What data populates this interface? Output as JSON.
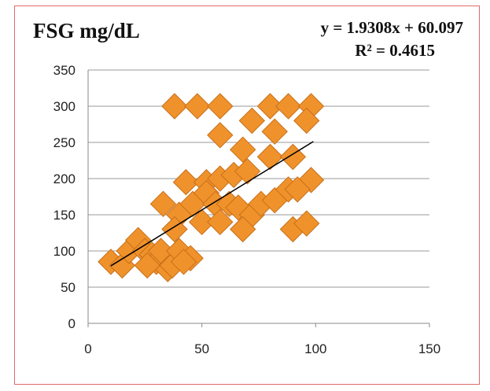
{
  "chart_data": {
    "type": "scatter",
    "title": "FSG mg/dL",
    "xlabel": "",
    "ylabel": "",
    "xlim": [
      0,
      150
    ],
    "ylim": [
      0,
      350
    ],
    "xticks": [
      "0",
      "50",
      "100",
      "150"
    ],
    "yticks": [
      "0",
      "50",
      "100",
      "150",
      "200",
      "250",
      "300",
      "350"
    ],
    "grid": "horizontal",
    "legend": "none",
    "marker_color": "#f0922b",
    "trendline": {
      "slope": 1.9308,
      "intercept": 60.097,
      "x_range": [
        10,
        99
      ],
      "equation_label": "y = 1.9308x + 60.097",
      "r2_label": "R² = 0.4615",
      "color": "#000000"
    },
    "points": [
      [
        38,
        300
      ],
      [
        48,
        300
      ],
      [
        58,
        300
      ],
      [
        80,
        300
      ],
      [
        88,
        300
      ],
      [
        98,
        300
      ],
      [
        58,
        260
      ],
      [
        72,
        280
      ],
      [
        96,
        280
      ],
      [
        82,
        265
      ],
      [
        68,
        240
      ],
      [
        80,
        230
      ],
      [
        90,
        230
      ],
      [
        43,
        195
      ],
      [
        52,
        195
      ],
      [
        58,
        200
      ],
      [
        64,
        205
      ],
      [
        70,
        210
      ],
      [
        98,
        198
      ],
      [
        33,
        165
      ],
      [
        40,
        150
      ],
      [
        46,
        165
      ],
      [
        52,
        180
      ],
      [
        56,
        165
      ],
      [
        62,
        165
      ],
      [
        66,
        160
      ],
      [
        72,
        150
      ],
      [
        76,
        165
      ],
      [
        82,
        170
      ],
      [
        88,
        185
      ],
      [
        92,
        185
      ],
      [
        50,
        140
      ],
      [
        58,
        140
      ],
      [
        68,
        130
      ],
      [
        90,
        130
      ],
      [
        96,
        138
      ],
      [
        38,
        130
      ],
      [
        10,
        85
      ],
      [
        15,
        80
      ],
      [
        18,
        100
      ],
      [
        22,
        115
      ],
      [
        25,
        100
      ],
      [
        28,
        95
      ],
      [
        30,
        85
      ],
      [
        32,
        100
      ],
      [
        35,
        75
      ],
      [
        37,
        80
      ],
      [
        40,
        100
      ],
      [
        45,
        90
      ],
      [
        42,
        85
      ],
      [
        26,
        80
      ]
    ]
  }
}
